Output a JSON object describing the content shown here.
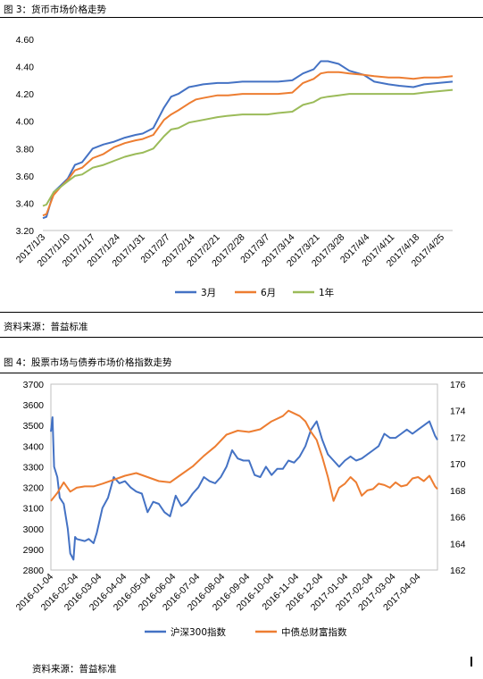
{
  "figure1": {
    "title": "图 3：货币市场价格走势",
    "source": "资料来源：普益标准"
  },
  "figure2": {
    "title": "图 4：股票市场与债券市场价格指数走势",
    "source": "资料来源：普益标准"
  },
  "chart_data": [
    {
      "type": "line",
      "title": "",
      "xlabel": "",
      "ylabel": "",
      "ylim": [
        3.2,
        4.6
      ],
      "yticks": [
        "3.20",
        "3.40",
        "3.60",
        "3.80",
        "4.00",
        "4.20",
        "4.40",
        "4.60"
      ],
      "xlim": [
        "2017/1/3",
        "2017/4/28"
      ],
      "xticks": [
        "2017/1/3",
        "2017/1/10",
        "2017/1/17",
        "2017/1/24",
        "2017/1/31",
        "2017/2/7",
        "2017/2/14",
        "2017/2/21",
        "2017/2/28",
        "2017/3/7",
        "2017/3/14",
        "2017/3/21",
        "2017/3/28",
        "2017/4/4",
        "2017/4/11",
        "2017/4/18",
        "2017/4/25"
      ],
      "grid": false,
      "legend_position": "bottom",
      "series": [
        {
          "name": "3月",
          "color": "#4472C4",
          "x": [
            "2017/1/3",
            "2017/1/4",
            "2017/1/6",
            "2017/1/8",
            "2017/1/10",
            "2017/1/12",
            "2017/1/14",
            "2017/1/17",
            "2017/1/20",
            "2017/1/23",
            "2017/1/26",
            "2017/1/29",
            "2017/1/31",
            "2017/2/3",
            "2017/2/6",
            "2017/2/8",
            "2017/2/10",
            "2017/2/13",
            "2017/2/15",
            "2017/2/17",
            "2017/2/21",
            "2017/2/24",
            "2017/2/28",
            "2017/3/3",
            "2017/3/7",
            "2017/3/10",
            "2017/3/14",
            "2017/3/17",
            "2017/3/20",
            "2017/3/22",
            "2017/3/24",
            "2017/3/27",
            "2017/3/30",
            "2017/4/3",
            "2017/4/6",
            "2017/4/10",
            "2017/4/13",
            "2017/4/17",
            "2017/4/20",
            "2017/4/24",
            "2017/4/28"
          ],
          "values": [
            3.29,
            3.3,
            3.48,
            3.53,
            3.58,
            3.68,
            3.7,
            3.8,
            3.83,
            3.85,
            3.88,
            3.9,
            3.91,
            3.95,
            4.1,
            4.18,
            4.2,
            4.25,
            4.26,
            4.27,
            4.28,
            4.28,
            4.29,
            4.29,
            4.29,
            4.29,
            4.3,
            4.35,
            4.38,
            4.44,
            4.44,
            4.42,
            4.37,
            4.34,
            4.29,
            4.27,
            4.26,
            4.25,
            4.27,
            4.28,
            4.29
          ]
        },
        {
          "name": "6月",
          "color": "#ED7D31",
          "x": [
            "2017/1/3",
            "2017/1/4",
            "2017/1/6",
            "2017/1/8",
            "2017/1/10",
            "2017/1/12",
            "2017/1/14",
            "2017/1/17",
            "2017/1/20",
            "2017/1/23",
            "2017/1/26",
            "2017/1/29",
            "2017/1/31",
            "2017/2/3",
            "2017/2/6",
            "2017/2/8",
            "2017/2/10",
            "2017/2/13",
            "2017/2/15",
            "2017/2/17",
            "2017/2/21",
            "2017/2/24",
            "2017/2/28",
            "2017/3/3",
            "2017/3/7",
            "2017/3/10",
            "2017/3/14",
            "2017/3/17",
            "2017/3/20",
            "2017/3/22",
            "2017/3/24",
            "2017/3/27",
            "2017/3/30",
            "2017/4/3",
            "2017/4/6",
            "2017/4/10",
            "2017/4/13",
            "2017/4/17",
            "2017/4/20",
            "2017/4/24",
            "2017/4/28"
          ],
          "values": [
            3.31,
            3.32,
            3.46,
            3.52,
            3.57,
            3.64,
            3.66,
            3.73,
            3.76,
            3.81,
            3.84,
            3.86,
            3.87,
            3.9,
            4.01,
            4.05,
            4.08,
            4.13,
            4.16,
            4.17,
            4.19,
            4.19,
            4.2,
            4.2,
            4.2,
            4.2,
            4.21,
            4.28,
            4.31,
            4.35,
            4.36,
            4.36,
            4.35,
            4.34,
            4.33,
            4.32,
            4.32,
            4.31,
            4.32,
            4.32,
            4.33
          ]
        },
        {
          "name": "1年",
          "color": "#9BBB59",
          "x": [
            "2017/1/3",
            "2017/1/4",
            "2017/1/6",
            "2017/1/8",
            "2017/1/10",
            "2017/1/12",
            "2017/1/14",
            "2017/1/17",
            "2017/1/20",
            "2017/1/23",
            "2017/1/26",
            "2017/1/29",
            "2017/1/31",
            "2017/2/3",
            "2017/2/6",
            "2017/2/8",
            "2017/2/10",
            "2017/2/13",
            "2017/2/15",
            "2017/2/17",
            "2017/2/21",
            "2017/2/24",
            "2017/2/28",
            "2017/3/3",
            "2017/3/7",
            "2017/3/10",
            "2017/3/14",
            "2017/3/17",
            "2017/3/20",
            "2017/3/22",
            "2017/3/24",
            "2017/3/27",
            "2017/3/30",
            "2017/4/3",
            "2017/4/6",
            "2017/4/10",
            "2017/4/13",
            "2017/4/17",
            "2017/4/20",
            "2017/4/24",
            "2017/4/28"
          ],
          "values": [
            3.38,
            3.39,
            3.48,
            3.52,
            3.56,
            3.6,
            3.61,
            3.66,
            3.68,
            3.71,
            3.74,
            3.76,
            3.77,
            3.8,
            3.89,
            3.94,
            3.95,
            3.99,
            4.0,
            4.01,
            4.03,
            4.04,
            4.05,
            4.05,
            4.05,
            4.06,
            4.07,
            4.12,
            4.14,
            4.17,
            4.18,
            4.19,
            4.2,
            4.2,
            4.2,
            4.2,
            4.2,
            4.2,
            4.21,
            4.22,
            4.23
          ]
        }
      ]
    },
    {
      "type": "line",
      "title": "",
      "xlabel": "",
      "ylabel": "",
      "ylim": [
        2800,
        3700
      ],
      "yticks": [
        "2800",
        "2900",
        "3000",
        "3100",
        "3200",
        "3300",
        "3400",
        "3500",
        "3600",
        "3700"
      ],
      "y2lim": [
        162,
        176
      ],
      "y2ticks": [
        "162",
        "164",
        "166",
        "168",
        "170",
        "172",
        "174",
        "176"
      ],
      "xlim": [
        "2016-01-04",
        "2017-04-28"
      ],
      "xticks": [
        "2016-01-04",
        "2016-02-04",
        "2016-03-04",
        "2016-04-04",
        "2016-05-04",
        "2016-06-04",
        "2016-07-04",
        "2016-08-04",
        "2016-09-04",
        "2016-10-04",
        "2016-11-04",
        "2016-12-04",
        "2017-01-04",
        "2017-02-04",
        "2017-03-04",
        "2017-04-04"
      ],
      "grid": false,
      "legend_position": "bottom",
      "series": [
        {
          "name": "沪深300指数",
          "axis": "left",
          "color": "#4472C4",
          "x": [
            "2016-01-04",
            "2016-01-06",
            "2016-01-08",
            "2016-01-12",
            "2016-01-15",
            "2016-01-20",
            "2016-01-25",
            "2016-01-28",
            "2016-02-01",
            "2016-02-03",
            "2016-02-05",
            "2016-02-15",
            "2016-02-20",
            "2016-02-26",
            "2016-03-01",
            "2016-03-08",
            "2016-03-15",
            "2016-03-22",
            "2016-03-29",
            "2016-04-05",
            "2016-04-12",
            "2016-04-19",
            "2016-04-26",
            "2016-05-03",
            "2016-05-10",
            "2016-05-17",
            "2016-05-24",
            "2016-05-31",
            "2016-06-07",
            "2016-06-14",
            "2016-06-21",
            "2016-06-28",
            "2016-07-05",
            "2016-07-12",
            "2016-07-19",
            "2016-07-26",
            "2016-08-02",
            "2016-08-09",
            "2016-08-16",
            "2016-08-23",
            "2016-08-30",
            "2016-09-06",
            "2016-09-13",
            "2016-09-20",
            "2016-09-27",
            "2016-10-04",
            "2016-10-11",
            "2016-10-18",
            "2016-10-25",
            "2016-11-01",
            "2016-11-08",
            "2016-11-15",
            "2016-11-22",
            "2016-11-29",
            "2016-12-06",
            "2016-12-13",
            "2016-12-20",
            "2016-12-27",
            "2017-01-03",
            "2017-01-10",
            "2017-01-17",
            "2017-01-24",
            "2017-01-31",
            "2017-02-07",
            "2017-02-14",
            "2017-02-21",
            "2017-02-28",
            "2017-03-07",
            "2017-03-14",
            "2017-03-21",
            "2017-03-28",
            "2017-04-04",
            "2017-04-11",
            "2017-04-18",
            "2017-04-25",
            "2017-04-28"
          ],
          "values": [
            3470,
            3540,
            3300,
            3250,
            3150,
            3120,
            3000,
            2880,
            2850,
            2960,
            2950,
            2940,
            2950,
            2930,
            2980,
            3100,
            3150,
            3250,
            3220,
            3230,
            3200,
            3180,
            3170,
            3080,
            3130,
            3120,
            3080,
            3060,
            3160,
            3110,
            3130,
            3170,
            3200,
            3250,
            3230,
            3220,
            3250,
            3300,
            3380,
            3340,
            3330,
            3330,
            3260,
            3250,
            3300,
            3260,
            3290,
            3290,
            3330,
            3320,
            3350,
            3400,
            3480,
            3520,
            3430,
            3360,
            3330,
            3300,
            3330,
            3350,
            3330,
            3340,
            3360,
            3380,
            3400,
            3460,
            3440,
            3440,
            3460,
            3480,
            3460,
            3480,
            3500,
            3520,
            3450,
            3430
          ]
        },
        {
          "name": "中债总财富指数",
          "axis": "right",
          "color": "#ED7D31",
          "x": [
            "2016-01-04",
            "2016-01-12",
            "2016-01-20",
            "2016-01-28",
            "2016-02-05",
            "2016-02-15",
            "2016-02-26",
            "2016-03-08",
            "2016-03-22",
            "2016-04-05",
            "2016-04-19",
            "2016-05-03",
            "2016-05-17",
            "2016-05-31",
            "2016-06-14",
            "2016-06-28",
            "2016-07-12",
            "2016-07-26",
            "2016-08-09",
            "2016-08-23",
            "2016-09-06",
            "2016-09-20",
            "2016-10-04",
            "2016-10-18",
            "2016-10-25",
            "2016-11-01",
            "2016-11-08",
            "2016-11-15",
            "2016-11-22",
            "2016-11-29",
            "2016-12-06",
            "2016-12-13",
            "2016-12-20",
            "2016-12-27",
            "2017-01-03",
            "2017-01-10",
            "2017-01-17",
            "2017-01-24",
            "2017-01-31",
            "2017-02-07",
            "2017-02-14",
            "2017-02-21",
            "2017-02-28",
            "2017-03-07",
            "2017-03-14",
            "2017-03-21",
            "2017-03-28",
            "2017-04-04",
            "2017-04-11",
            "2017-04-18",
            "2017-04-25",
            "2017-04-28"
          ],
          "values": [
            167.2,
            167.8,
            168.6,
            167.9,
            168.2,
            168.3,
            168.3,
            168.5,
            168.8,
            169.1,
            169.3,
            169.0,
            168.7,
            168.6,
            169.2,
            169.8,
            170.6,
            171.3,
            172.2,
            172.5,
            172.4,
            172.6,
            173.2,
            173.6,
            174.0,
            173.8,
            173.6,
            173.2,
            172.4,
            171.8,
            170.5,
            169.0,
            167.2,
            168.2,
            168.5,
            169.0,
            168.6,
            167.6,
            168.0,
            168.1,
            168.5,
            168.4,
            168.2,
            168.6,
            168.3,
            168.4,
            168.9,
            169.0,
            168.7,
            169.1,
            168.3,
            168.1
          ]
        }
      ]
    }
  ]
}
